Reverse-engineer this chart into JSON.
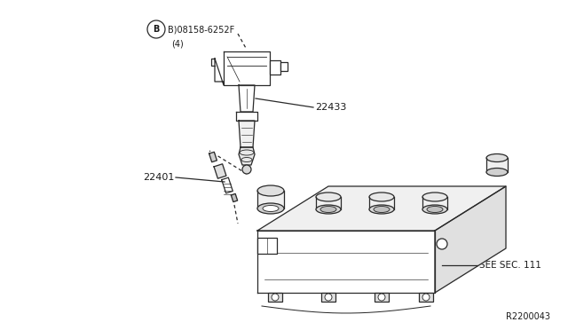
{
  "bg_color": "#ffffff",
  "line_color": "#2a2a2a",
  "text_color": "#1a1a1a",
  "diagram_id": "R2200043",
  "part_label_bolt": "B)08158-6252F",
  "part_label_bolt2": "(4)",
  "part_label_coil": "22433",
  "part_label_spark": "22401",
  "part_label_cover": "SEE SEC. 111",
  "figsize": [
    6.4,
    3.72
  ],
  "dpi": 100
}
